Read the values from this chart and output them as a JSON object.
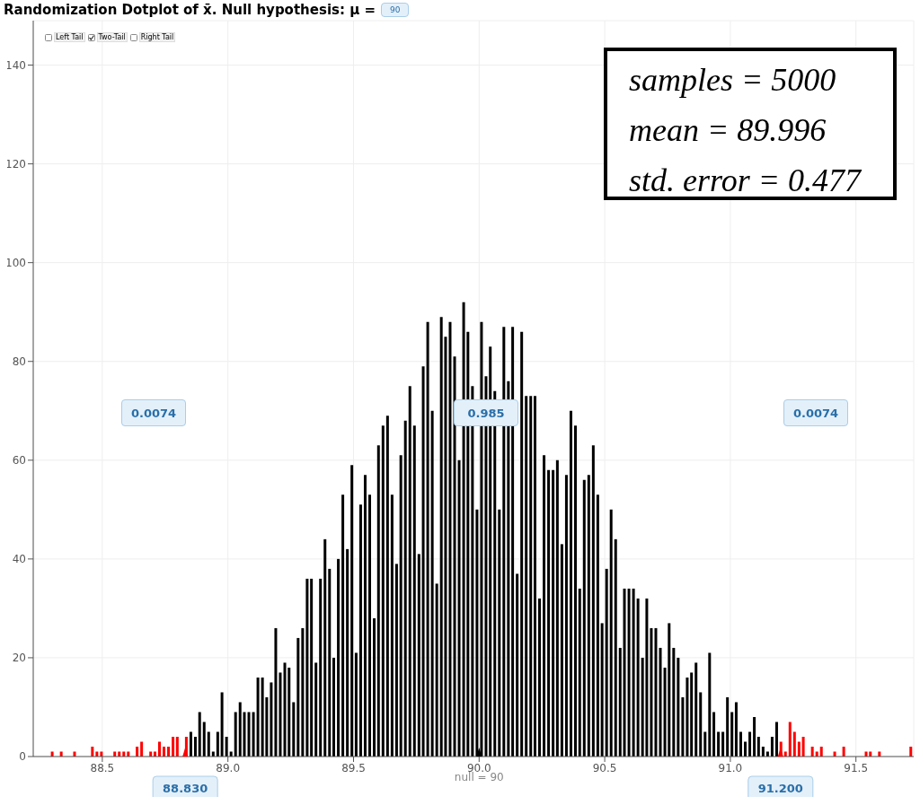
{
  "chart_data": {
    "type": "bar",
    "title": "Randomization Dotplot of x̄. Null hypothesis: μ =",
    "xlim": [
      88.225,
      91.73
    ],
    "xticks": [
      88.5,
      {
        "value": 89,
        "label": "89.0"
      },
      89.5,
      {
        "value": 90,
        "label": "90.0"
      },
      90.5,
      {
        "value": 91,
        "label": "91.0"
      },
      91.5
    ],
    "ylim": [
      0,
      149
    ],
    "yticks": [
      0,
      20,
      40,
      60,
      80,
      100,
      120,
      140
    ],
    "grid": true,
    "series": [
      {
        "color": "#ff0000",
        "x": [
          88.3,
          88.336,
          88.389,
          88.46,
          88.478,
          88.496,
          88.549,
          88.567,
          88.585,
          88.603,
          88.638,
          88.656,
          88.692,
          88.709,
          88.727,
          88.745,
          88.763,
          88.781,
          88.798,
          88.834
        ],
        "values": [
          1,
          1,
          1,
          2,
          1,
          1,
          1,
          1,
          1,
          1,
          2,
          3,
          1,
          1,
          3,
          2,
          2,
          4,
          4,
          4
        ]
      },
      {
        "color": "#000000",
        "x": [
          88.852,
          88.87,
          88.887,
          88.905,
          88.923,
          88.941,
          88.959,
          88.976,
          88.994,
          89.012,
          89.03,
          89.048,
          89.065,
          89.083,
          89.101,
          89.119,
          89.137,
          89.154,
          89.172,
          89.19,
          89.208,
          89.226,
          89.243,
          89.261,
          89.279,
          89.297,
          89.315,
          89.332,
          89.35,
          89.368,
          89.386,
          89.404,
          89.421,
          89.439,
          89.457,
          89.475,
          89.493,
          89.51,
          89.528,
          89.546,
          89.564,
          89.582,
          89.599,
          89.617,
          89.635,
          89.653,
          89.671,
          89.688,
          89.706,
          89.724,
          89.742,
          89.76,
          89.777,
          89.795,
          89.813,
          89.831,
          89.849,
          89.866,
          89.884,
          89.902,
          89.92,
          89.938,
          89.955,
          89.973,
          89.991,
          90.009,
          90.027,
          90.044,
          90.062,
          90.08,
          90.098,
          90.116,
          90.133,
          90.151,
          90.169,
          90.187,
          90.205,
          90.222,
          90.24,
          90.258,
          90.276,
          90.294,
          90.311,
          90.329,
          90.347,
          90.365,
          90.383,
          90.4,
          90.418,
          90.436,
          90.454,
          90.472,
          90.489,
          90.507,
          90.525,
          90.543,
          90.561,
          90.578,
          90.596,
          90.614,
          90.632,
          90.65,
          90.667,
          90.685,
          90.703,
          90.721,
          90.739,
          90.756,
          90.774,
          90.792,
          90.81,
          90.828,
          90.845,
          90.863,
          90.881,
          90.899,
          90.917,
          90.934,
          90.952,
          90.97,
          90.988,
          91.006,
          91.023,
          91.041,
          91.059,
          91.077,
          91.095,
          91.112,
          91.13,
          91.148,
          91.166,
          91.184
        ],
        "values": [
          5,
          4,
          9,
          7,
          5,
          1,
          5,
          13,
          4,
          1,
          9,
          11,
          9,
          9,
          9,
          16,
          16,
          12,
          15,
          26,
          17,
          19,
          18,
          11,
          24,
          26,
          36,
          36,
          19,
          36,
          44,
          38,
          20,
          40,
          53,
          42,
          59,
          21,
          51,
          57,
          53,
          28,
          63,
          67,
          69,
          53,
          39,
          61,
          68,
          75,
          67,
          41,
          79,
          88,
          70,
          35,
          89,
          85,
          88,
          81,
          60,
          92,
          86,
          75,
          50,
          88,
          77,
          83,
          74,
          50,
          87,
          76,
          87,
          37,
          86,
          73,
          73,
          73,
          32,
          61,
          58,
          58,
          60,
          43,
          57,
          70,
          67,
          34,
          56,
          57,
          63,
          53,
          27,
          38,
          50,
          44,
          22,
          34,
          34,
          34,
          32,
          20,
          32,
          26,
          26,
          22,
          18,
          27,
          22,
          20,
          12,
          16,
          17,
          19,
          13,
          5,
          21,
          9,
          5,
          5,
          12,
          9,
          11,
          5,
          3,
          5,
          8,
          4,
          2,
          1,
          4,
          7
        ]
      },
      {
        "color": "#ff0000",
        "x": [
          91.201,
          91.219,
          91.237,
          91.255,
          91.273,
          91.29,
          91.326,
          91.344,
          91.362,
          91.415,
          91.451,
          91.54,
          91.557,
          91.593,
          91.718
        ],
        "values": [
          3,
          1,
          7,
          5,
          3,
          4,
          2,
          1,
          2,
          1,
          2,
          1,
          1,
          1,
          2
        ]
      }
    ],
    "annotations": [
      "Left Tail",
      "Two-Tail",
      "Right Tail",
      "samples = 5000",
      "mean = 89.996",
      "std. error = 0.477",
      "0.0074",
      "0.985",
      "0.0074",
      "90",
      {
        "text": "88.830",
        "x": 88.83,
        "y": 0
      },
      {
        "text": "91.200",
        "x": 91.2,
        "y": 0
      },
      {
        "text": "null = 90",
        "x": 90,
        "y": 0
      }
    ]
  }
}
